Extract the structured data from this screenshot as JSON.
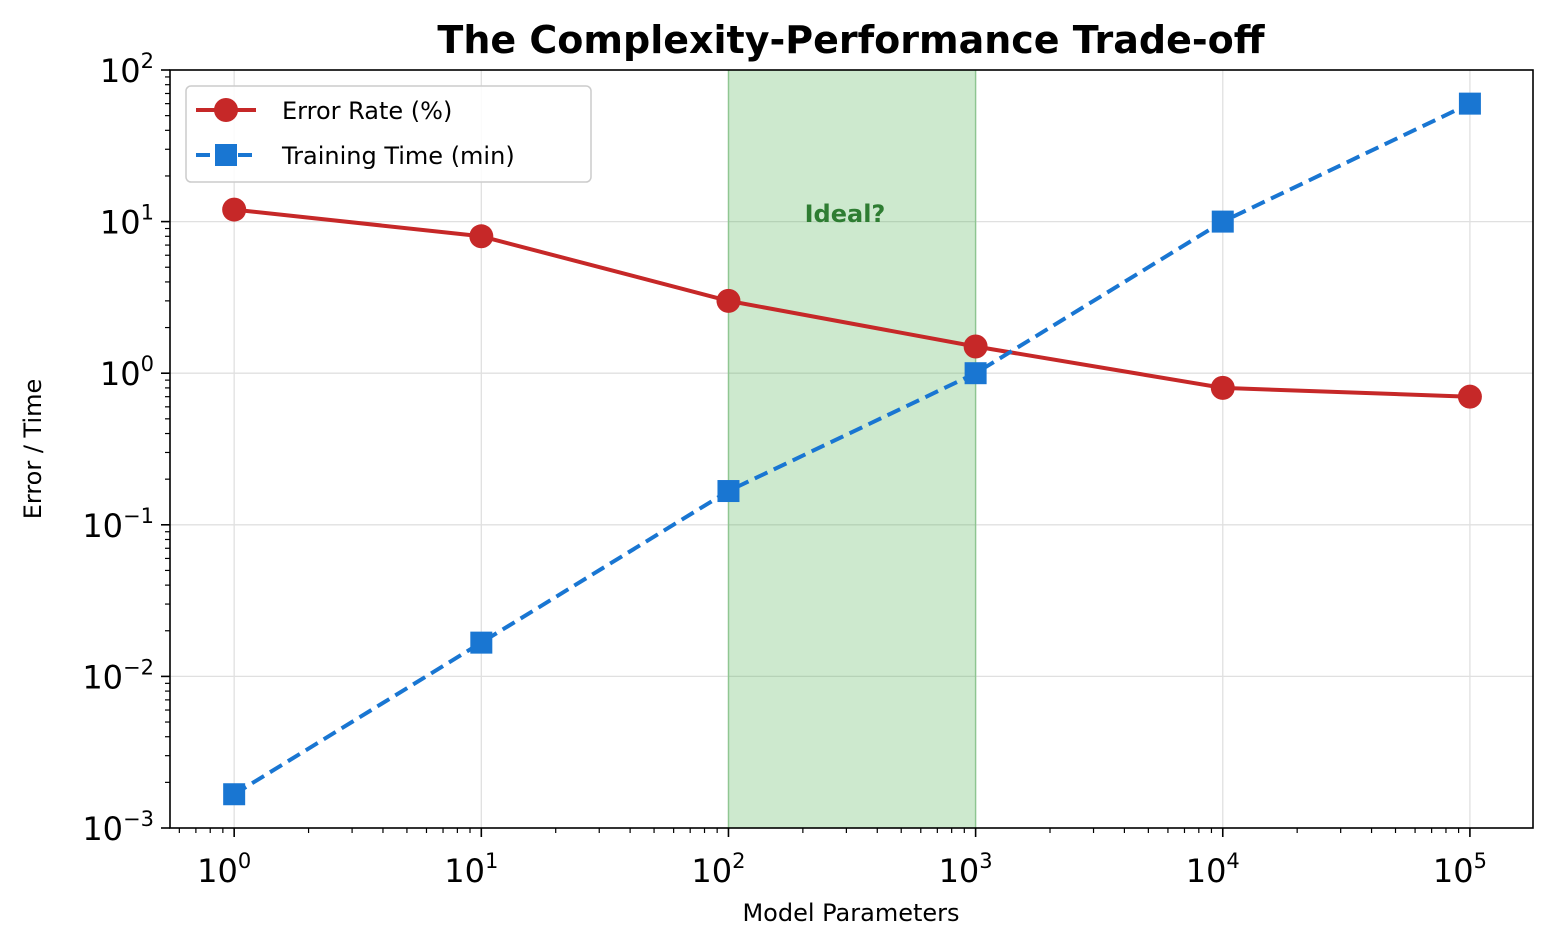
{
  "chart_data": {
    "type": "line",
    "title": "The Complexity-Performance Trade-off",
    "xlabel": "Model Parameters",
    "ylabel": "Error / Time",
    "xscale": "log",
    "yscale": "log",
    "xlim": [
      0.55,
      180000
    ],
    "ylim": [
      0.001,
      100
    ],
    "x": [
      1,
      10,
      100,
      1000,
      10000,
      100000
    ],
    "x_tick_exponents": [
      "0",
      "1",
      "2",
      "3",
      "4",
      "5"
    ],
    "y_tick_exponents": [
      "−3",
      "−2",
      "−1",
      "0",
      "1",
      "2"
    ],
    "grid": true,
    "legend_position": "top-left",
    "series": [
      {
        "name": "Error Rate (%)",
        "values": [
          12,
          8,
          3,
          1.5,
          0.8,
          0.7
        ],
        "color": "#c62828",
        "marker": "circle",
        "line_style": "solid"
      },
      {
        "name": "Training Time (min)",
        "values": [
          0.00167,
          0.0167,
          0.167,
          1,
          10,
          60
        ],
        "color": "#1976d2",
        "marker": "square",
        "line_style": "dashed"
      }
    ],
    "shaded_region": {
      "x_range": [
        100,
        1000
      ],
      "color": "#4caf50",
      "label": "Ideal?"
    }
  }
}
